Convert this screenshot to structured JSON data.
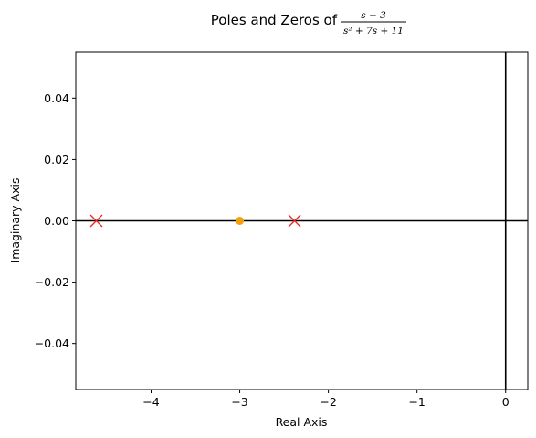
{
  "chart_data": {
    "type": "scatter",
    "title": {
      "prefix": "Poles and Zeros of",
      "numerator": "s + 3",
      "denominator": "s² + 7s + 11"
    },
    "xlabel": "Real Axis",
    "ylabel": "Imaginary Axis",
    "xlim": [
      -4.85,
      0.25
    ],
    "ylim": [
      -0.055,
      0.055
    ],
    "xticks": [
      {
        "value": -4,
        "label": "−4"
      },
      {
        "value": -3,
        "label": "−3"
      },
      {
        "value": -2,
        "label": "−2"
      },
      {
        "value": -1,
        "label": "−1"
      },
      {
        "value": 0,
        "label": "0"
      }
    ],
    "yticks": [
      {
        "value": 0.04,
        "label": "0.04"
      },
      {
        "value": 0.02,
        "label": "0.02"
      },
      {
        "value": 0.0,
        "label": "0.00"
      },
      {
        "value": -0.02,
        "label": "−0.02"
      },
      {
        "value": -0.04,
        "label": "−0.04"
      }
    ],
    "grid": false,
    "reference_lines": {
      "x": 0,
      "y": 0,
      "color": "#000000"
    },
    "series": [
      {
        "marker": "x",
        "color": "#e8261c",
        "points": [
          [
            -4.618,
            0
          ],
          [
            -2.382,
            0
          ]
        ]
      },
      {
        "marker": "o",
        "color": "#f59e0b",
        "points": [
          [
            -3,
            0
          ]
        ]
      }
    ]
  }
}
